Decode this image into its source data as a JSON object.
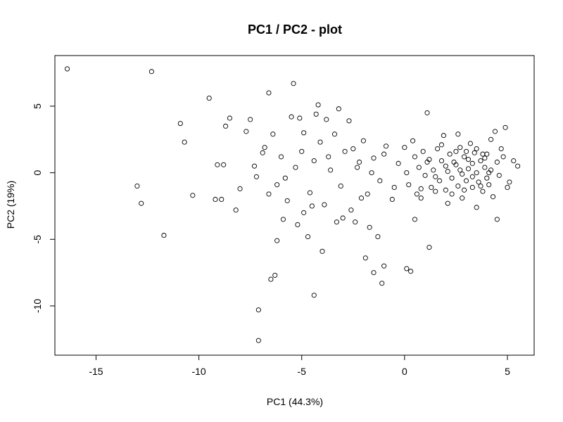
{
  "chart_data": {
    "type": "scatter",
    "title": "PC1 / PC2 - plot",
    "xlabel": "PC1 (44.3%)",
    "ylabel": "PC2 (19%)",
    "xlim": [
      -17.0,
      6.3
    ],
    "ylim": [
      -13.7,
      8.8
    ],
    "xticks": [
      -15,
      -10,
      -5,
      0,
      5
    ],
    "yticks": [
      -10,
      -5,
      0,
      5
    ],
    "grid": false,
    "marker": "open-circle",
    "marker_color": "#000000",
    "points": [
      [
        -16.4,
        7.8
      ],
      [
        -12.3,
        7.6
      ],
      [
        -13.0,
        -1.0
      ],
      [
        -12.8,
        -2.3
      ],
      [
        -11.7,
        -4.7
      ],
      [
        -10.9,
        3.7
      ],
      [
        -10.7,
        2.3
      ],
      [
        -10.3,
        -1.7
      ],
      [
        -9.5,
        5.6
      ],
      [
        -9.2,
        -2.0
      ],
      [
        -9.1,
        0.6
      ],
      [
        -8.9,
        -2.0
      ],
      [
        -8.8,
        0.6
      ],
      [
        -8.7,
        3.5
      ],
      [
        -8.5,
        4.1
      ],
      [
        -8.2,
        -2.8
      ],
      [
        -7.7,
        3.1
      ],
      [
        -7.5,
        4.0
      ],
      [
        -7.3,
        0.5
      ],
      [
        -7.1,
        -10.3
      ],
      [
        -7.1,
        -12.6
      ],
      [
        -6.9,
        1.5
      ],
      [
        -6.6,
        6.0
      ],
      [
        -6.5,
        -8.0
      ],
      [
        -6.3,
        -7.7
      ],
      [
        -6.2,
        -5.1
      ],
      [
        -5.9,
        -3.5
      ],
      [
        -5.5,
        4.2
      ],
      [
        -5.4,
        6.7
      ],
      [
        -5.3,
        0.4
      ],
      [
        -5.1,
        4.1
      ],
      [
        -4.9,
        3.0
      ],
      [
        -4.7,
        -4.8
      ],
      [
        -4.4,
        -9.2
      ],
      [
        -4.3,
        4.4
      ],
      [
        -4.2,
        5.1
      ],
      [
        -4.0,
        -5.9
      ],
      [
        -3.8,
        4.0
      ],
      [
        -3.3,
        -3.7
      ],
      [
        -3.2,
        4.8
      ],
      [
        -2.7,
        3.9
      ],
      [
        -2.4,
        -3.7
      ],
      [
        -2.2,
        0.8
      ],
      [
        -1.9,
        -6.4
      ],
      [
        -1.7,
        -4.1
      ],
      [
        -1.5,
        -7.5
      ],
      [
        -1.3,
        -4.8
      ],
      [
        -1.1,
        -8.3
      ],
      [
        -1.0,
        -7.0
      ],
      [
        0.1,
        -7.2
      ],
      [
        0.3,
        -7.4
      ],
      [
        0.5,
        -3.5
      ],
      [
        0.8,
        -1.2
      ],
      [
        1.1,
        4.5
      ],
      [
        1.2,
        -5.6
      ],
      [
        1.5,
        -1.4
      ],
      [
        1.9,
        2.8
      ],
      [
        2.1,
        -2.3
      ],
      [
        2.4,
        0.8
      ],
      [
        2.6,
        2.9
      ],
      [
        2.8,
        -1.9
      ],
      [
        3.0,
        1.6
      ],
      [
        3.3,
        0.7
      ],
      [
        3.5,
        -2.6
      ],
      [
        3.8,
        1.4
      ],
      [
        4.0,
        -0.4
      ],
      [
        4.2,
        2.5
      ],
      [
        4.4,
        3.1
      ],
      [
        4.5,
        -3.5
      ],
      [
        4.7,
        1.8
      ],
      [
        4.9,
        3.4
      ],
      [
        5.1,
        -0.7
      ],
      [
        5.3,
        0.9
      ],
      [
        5.5,
        0.5
      ],
      [
        -6.8,
        1.9
      ],
      [
        -6.6,
        -1.6
      ],
      [
        -6.2,
        -0.9
      ],
      [
        -6.0,
        1.2
      ],
      [
        -5.7,
        -2.1
      ],
      [
        -5.2,
        -3.9
      ],
      [
        -4.9,
        -3.0
      ],
      [
        -4.6,
        -1.5
      ],
      [
        -4.4,
        0.9
      ],
      [
        -4.1,
        2.3
      ],
      [
        -3.9,
        -2.4
      ],
      [
        -3.6,
        0.2
      ],
      [
        -3.4,
        2.9
      ],
      [
        -3.1,
        -1.0
      ],
      [
        -2.9,
        1.6
      ],
      [
        -2.6,
        -2.8
      ],
      [
        -2.3,
        0.4
      ],
      [
        -2.0,
        2.4
      ],
      [
        -1.8,
        -1.6
      ],
      [
        -1.5,
        1.1
      ],
      [
        -1.2,
        -0.6
      ],
      [
        -0.9,
        2.0
      ],
      [
        -0.6,
        -2.0
      ],
      [
        -0.3,
        0.7
      ],
      [
        0.0,
        1.9
      ],
      [
        0.2,
        -0.9
      ],
      [
        0.4,
        2.4
      ],
      [
        0.6,
        -1.6
      ],
      [
        0.7,
        0.4
      ],
      [
        0.9,
        1.6
      ],
      [
        1.0,
        -0.2
      ],
      [
        1.2,
        1.0
      ],
      [
        1.3,
        -1.1
      ],
      [
        1.4,
        0.2
      ],
      [
        1.6,
        1.8
      ],
      [
        1.7,
        -0.6
      ],
      [
        1.8,
        0.9
      ],
      [
        2.0,
        -1.3
      ],
      [
        2.1,
        0.1
      ],
      [
        2.2,
        1.4
      ],
      [
        2.3,
        -0.4
      ],
      [
        2.5,
        0.6
      ],
      [
        2.6,
        -1.0
      ],
      [
        2.7,
        1.9
      ],
      [
        2.8,
        -0.1
      ],
      [
        2.9,
        1.2
      ],
      [
        3.0,
        -0.6
      ],
      [
        3.1,
        0.3
      ],
      [
        3.2,
        2.2
      ],
      [
        3.3,
        -1.1
      ],
      [
        3.4,
        1.5
      ],
      [
        3.5,
        0.0
      ],
      [
        3.6,
        -0.7
      ],
      [
        3.7,
        0.9
      ],
      [
        3.8,
        -1.4
      ],
      [
        3.9,
        0.4
      ],
      [
        4.0,
        1.4
      ],
      [
        4.1,
        -0.9
      ],
      [
        4.2,
        0.2
      ],
      [
        4.3,
        -1.8
      ],
      [
        4.5,
        0.8
      ],
      [
        4.6,
        -0.2
      ],
      [
        4.8,
        1.2
      ],
      [
        5.0,
        -1.1
      ],
      [
        -8.0,
        -1.2
      ],
      [
        -7.2,
        -0.3
      ],
      [
        -6.4,
        2.9
      ],
      [
        -5.8,
        -0.4
      ],
      [
        -5.0,
        1.6
      ],
      [
        -4.5,
        -2.5
      ],
      [
        -3.7,
        1.2
      ],
      [
        -3.0,
        -3.4
      ],
      [
        -2.5,
        1.8
      ],
      [
        -2.1,
        -1.9
      ],
      [
        -1.6,
        0.0
      ],
      [
        -1.0,
        1.4
      ],
      [
        -0.5,
        -1.1
      ],
      [
        0.1,
        0.0
      ],
      [
        0.5,
        1.2
      ],
      [
        0.8,
        -1.9
      ],
      [
        1.1,
        0.8
      ],
      [
        1.5,
        -0.3
      ],
      [
        1.8,
        2.1
      ],
      [
        2.0,
        0.5
      ],
      [
        2.3,
        -1.6
      ],
      [
        2.5,
        1.6
      ],
      [
        2.7,
        0.2
      ],
      [
        2.9,
        -1.3
      ],
      [
        3.1,
        1.0
      ],
      [
        3.3,
        -0.3
      ],
      [
        3.5,
        1.8
      ],
      [
        3.7,
        -1.0
      ],
      [
        3.9,
        1.1
      ],
      [
        4.1,
        0.0
      ]
    ]
  }
}
